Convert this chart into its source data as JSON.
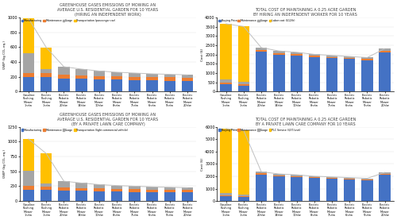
{
  "categories": [
    "Gasoline\nPushing\nMower\n1hr/w",
    "Electric\nPushing\nMower\n1hr/w",
    "Electric\nRobotic\nMower\n20h/w",
    "Electric\nRobotic\nMower\n14h/w",
    "Electric\nRobotic\nMower\n10h/w",
    "Electric\nRobotic\nMower\n8hr/w",
    "Electric\nRobotic\nMower\n7hr/w",
    "Electric\nRobotic\nMower\n6hr/w",
    "Electric\nRobotic\nMower\n5hr/w",
    "Electric\nRobotic\nMower\n20h/w"
  ],
  "gwp_sit2_indep": {
    "manufacturing": [
      195,
      195,
      175,
      170,
      165,
      160,
      155,
      150,
      148,
      145
    ],
    "maintenance": [
      60,
      50,
      50,
      48,
      47,
      46,
      45,
      44,
      43,
      42
    ],
    "usage": [
      260,
      55,
      110,
      85,
      65,
      55,
      50,
      45,
      42,
      38
    ],
    "transport": [
      470,
      295,
      0,
      0,
      0,
      0,
      0,
      0,
      0,
      0
    ]
  },
  "gwp_sit2_indep_line": [
    985,
    595,
    335,
    303,
    277,
    261,
    250,
    239,
    233,
    225
  ],
  "gwp_sit2_ylim": [
    0,
    1000
  ],
  "gwp_sit2_yticks": [
    0,
    200,
    400,
    600,
    800,
    1000
  ],
  "tco_sit2_indep": {
    "buying": [
      380,
      330,
      2150,
      2000,
      1950,
      1850,
      1800,
      1750,
      1700,
      2100
    ],
    "maintenance": [
      90,
      70,
      90,
      80,
      75,
      72,
      70,
      68,
      65,
      90
    ],
    "usage": [
      180,
      110,
      130,
      110,
      95,
      85,
      80,
      75,
      70,
      130
    ],
    "labor": [
      3000,
      3000,
      0,
      0,
      0,
      0,
      0,
      0,
      0,
      0
    ]
  },
  "tco_sit2_indep_line": [
    3650,
    3510,
    2370,
    2190,
    2120,
    2007,
    1950,
    1893,
    1835,
    2320
  ],
  "tco_sit2_ylim": [
    0,
    4000
  ],
  "tco_sit2_yticks": [
    0,
    500,
    1000,
    1500,
    2000,
    2500,
    3000,
    3500,
    4000
  ],
  "gwp_sit3_company": {
    "manufacturing": [
      195,
      195,
      175,
      170,
      165,
      160,
      155,
      150,
      148,
      145
    ],
    "maintenance": [
      60,
      50,
      50,
      48,
      47,
      46,
      45,
      44,
      43,
      42
    ],
    "usage": [
      260,
      55,
      110,
      85,
      65,
      55,
      50,
      45,
      42,
      38
    ],
    "transport": [
      530,
      500,
      0,
      0,
      0,
      0,
      0,
      0,
      0,
      0
    ]
  },
  "gwp_sit3_company_line": [
    1045,
    800,
    335,
    303,
    277,
    261,
    250,
    239,
    233,
    225
  ],
  "gwp_sit3_ylim": [
    0,
    1250
  ],
  "gwp_sit3_yticks": [
    0,
    250,
    500,
    750,
    1000,
    1250
  ],
  "tco_sit3_company": {
    "buying": [
      380,
      330,
      2150,
      2000,
      1950,
      1850,
      1800,
      1750,
      1700,
      2100
    ],
    "maintenance": [
      90,
      70,
      90,
      80,
      75,
      72,
      70,
      68,
      65,
      90
    ],
    "usage": [
      180,
      110,
      130,
      110,
      95,
      85,
      80,
      75,
      70,
      130
    ],
    "plc": [
      5200,
      5200,
      0,
      0,
      0,
      0,
      0,
      0,
      0,
      0
    ]
  },
  "tco_sit3_company_line": [
    5850,
    5710,
    2370,
    2190,
    2120,
    2007,
    1950,
    1893,
    1835,
    2320
  ],
  "tco_sit3_ylim": [
    0,
    6000
  ],
  "tco_sit3_yticks": [
    0,
    1000,
    2000,
    3000,
    4000,
    5000,
    6000
  ],
  "colors": {
    "manufacturing": "#4472C4",
    "maintenance": "#ED7D31",
    "usage": "#A5A5A5",
    "transport_car": "#FFC000",
    "labor": "#FFC000",
    "plc": "#FFC000",
    "buying": "#4472C4",
    "line": "#C0C0C0"
  },
  "title_a": "GREENHOUSE GASES EMISSIONS OF MOWING AN\nAVERAGE U.S. RESIDENTIAL GARDEN FOR 10 YEARS\n(HIRING AN INDEPENDENT WORK)",
  "title_b": "TOTAL COST OF MAINTAINING A 0.25 ACRE GARDEN\nBY HIRING AN INDEPENDENT WORKER FOR 10 YEARS",
  "title_c": "GREENHOUSE GASES EMISSIONS OF MOWING AN\nAVERAGE U.S. RESIDENTIAL GARDEN FOR 10 YEARS\n(BY A PRIVATE LAWN CARE COMPANY)",
  "title_d": "TOTAL COST OF MAINTAINING A 0.25 ACRE GARDEN\nBY A PRIVATE LAWN CARE COMPANY FOR 10 YEARS",
  "ylabel_gwp": "GWP (kg CO₂ eq.)",
  "ylabel_tco": "Cost ($)",
  "legend_a": [
    "Manufacturing",
    "Maintenance",
    "Usage",
    "Transportation (passenger car)"
  ],
  "legend_b": [
    "Buying Price",
    "Maintenance",
    "Usage",
    "Labor cost ($12/h)"
  ],
  "legend_c": [
    "Manufacturing",
    "Maintenance",
    "Usage",
    "Transportation (light commercial vehicle)"
  ],
  "legend_d": [
    "Buying Price",
    "Maintenance",
    "Usage",
    "PLC Service ($37/visit)"
  ]
}
